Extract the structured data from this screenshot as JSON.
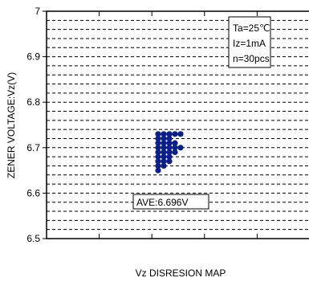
{
  "chart_data": {
    "type": "scatter",
    "title": "",
    "xlabel": "Vz DISRESION MAP",
    "ylabel": "ZENER VOLTAGE:Vz(V)",
    "ylim": [
      6.5,
      7.0
    ],
    "yticks": [
      "6.5",
      "6.6",
      "6.7",
      "6.8",
      "6.9",
      "7"
    ],
    "grid": true,
    "conditions": [
      "Ta=25℃",
      "Iz=1mA",
      "n=30pcs"
    ],
    "conditions_placement": "top-right",
    "annotation": "AVE:6.696V",
    "series": [
      {
        "color": "#0b1f8a",
        "points": [
          {
            "col": 0,
            "y": 6.65
          },
          {
            "col": 0,
            "y": 6.66
          },
          {
            "col": 0,
            "y": 6.67
          },
          {
            "col": 0,
            "y": 6.68
          },
          {
            "col": 0,
            "y": 6.69
          },
          {
            "col": 0,
            "y": 6.7
          },
          {
            "col": 0,
            "y": 6.71
          },
          {
            "col": 0,
            "y": 6.72
          },
          {
            "col": 0,
            "y": 6.73
          },
          {
            "col": 1,
            "y": 6.66
          },
          {
            "col": 1,
            "y": 6.67
          },
          {
            "col": 1,
            "y": 6.68
          },
          {
            "col": 1,
            "y": 6.69
          },
          {
            "col": 1,
            "y": 6.7
          },
          {
            "col": 1,
            "y": 6.71
          },
          {
            "col": 1,
            "y": 6.72
          },
          {
            "col": 1,
            "y": 6.73
          },
          {
            "col": 2,
            "y": 6.67
          },
          {
            "col": 2,
            "y": 6.68
          },
          {
            "col": 2,
            "y": 6.69
          },
          {
            "col": 2,
            "y": 6.7
          },
          {
            "col": 2,
            "y": 6.71
          },
          {
            "col": 2,
            "y": 6.72
          },
          {
            "col": 2,
            "y": 6.73
          },
          {
            "col": 3,
            "y": 6.69
          },
          {
            "col": 3,
            "y": 6.7
          },
          {
            "col": 3,
            "y": 6.71
          },
          {
            "col": 3,
            "y": 6.73
          },
          {
            "col": 4,
            "y": 6.7
          },
          {
            "col": 4,
            "y": 6.73
          }
        ]
      }
    ]
  }
}
